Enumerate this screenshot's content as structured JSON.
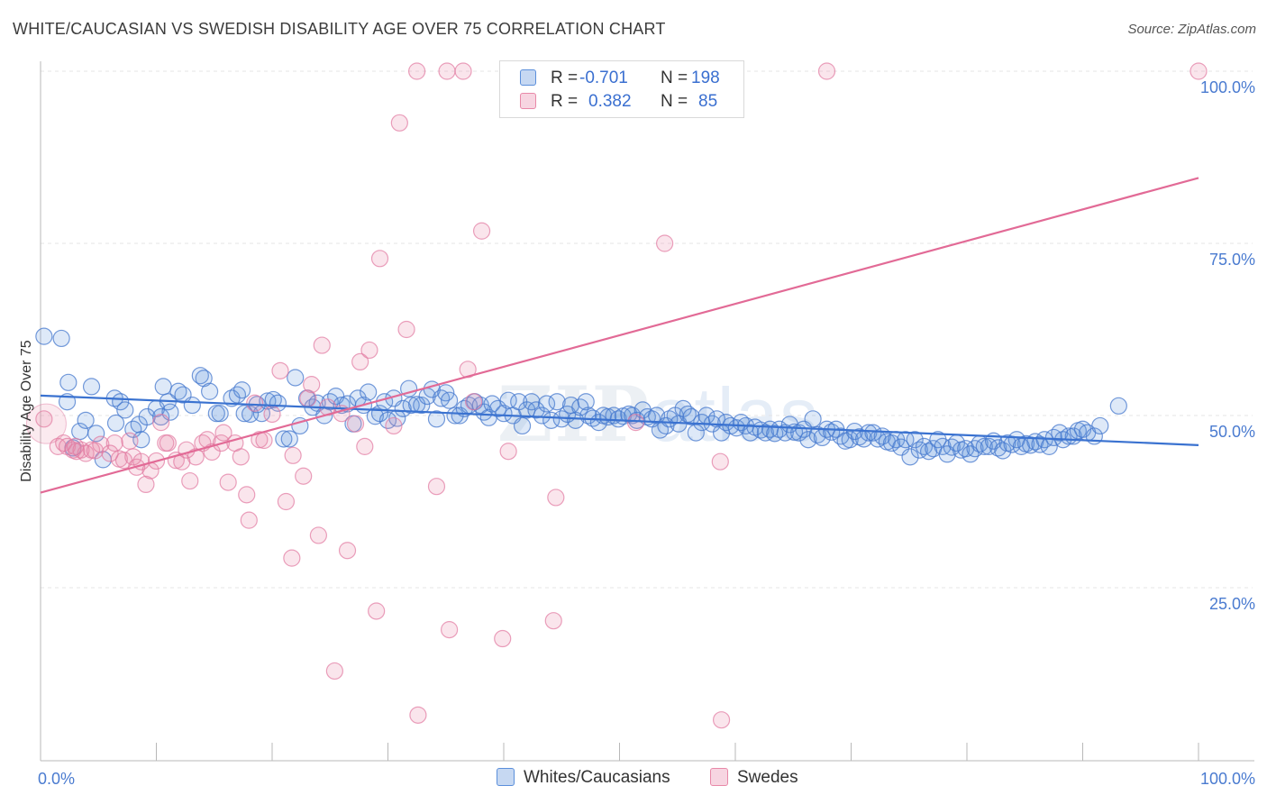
{
  "title": "WHITE/CAUCASIAN VS SWEDISH DISABILITY AGE OVER 75 CORRELATION CHART",
  "source": "Source: ZipAtlas.com",
  "watermark": {
    "bold": "ZIP",
    "light": "atlas"
  },
  "legend": {
    "r_label": "R =",
    "n_label": "N =",
    "rows": [
      {
        "series": "Whites/Caucasians",
        "r": "-0.701",
        "n": "198",
        "color": "#5b8fdb"
      },
      {
        "series": "Swedes",
        "r": "0.382",
        "n": "85",
        "color": "#e888a8"
      }
    ]
  },
  "chart_data": {
    "type": "scatter",
    "title": "WHITE/CAUCASIAN VS SWEDISH DISABILITY AGE OVER 75 CORRELATION CHART",
    "xlabel": "",
    "ylabel": "Disability Age Over 75",
    "xlim": [
      0,
      100
    ],
    "ylim": [
      0,
      102
    ],
    "x_tick_labels": [
      {
        "value": 0,
        "label": "0.0%"
      },
      {
        "value": 100,
        "label": "100.0%"
      }
    ],
    "y_tick_labels": [
      {
        "value": 25,
        "label": "25.0%"
      },
      {
        "value": 50,
        "label": "50.0%"
      },
      {
        "value": 75,
        "label": "75.0%"
      },
      {
        "value": 100,
        "label": "100.0%"
      }
    ],
    "grid": "horizontal dashed",
    "legend_position": "bottom-center",
    "series": [
      {
        "name": "Whites/Caucasians",
        "color": "#5b8fdb",
        "trend": {
          "x": [
            0,
            100
          ],
          "y": [
            52.9,
            45.7
          ]
        },
        "points": [
          [
            0.3,
            61.5
          ],
          [
            1.8,
            61.2
          ],
          [
            2.3,
            52.0
          ],
          [
            2.4,
            54.8
          ],
          [
            2.8,
            45.3
          ],
          [
            3.4,
            47.7
          ],
          [
            3.9,
            49.3
          ],
          [
            4.4,
            54.2
          ],
          [
            4.8,
            47.4
          ],
          [
            5.4,
            43.6
          ],
          [
            6.4,
            52.5
          ],
          [
            6.5,
            48.9
          ],
          [
            6.9,
            52.0
          ],
          [
            7.3,
            50.8
          ],
          [
            8.0,
            48.0
          ],
          [
            8.5,
            48.7
          ],
          [
            8.7,
            46.5
          ],
          [
            9.2,
            49.8
          ],
          [
            10.0,
            51.0
          ],
          [
            10.4,
            49.8
          ],
          [
            10.6,
            54.2
          ],
          [
            11.0,
            52.0
          ],
          [
            11.2,
            50.5
          ],
          [
            11.9,
            53.5
          ],
          [
            12.3,
            53.0
          ],
          [
            13.1,
            51.5
          ],
          [
            13.8,
            55.8
          ],
          [
            14.1,
            55.4
          ],
          [
            14.6,
            53.5
          ],
          [
            15.2,
            50.3
          ],
          [
            15.5,
            50.3
          ],
          [
            16.5,
            52.5
          ],
          [
            17.0,
            53.0
          ],
          [
            17.4,
            53.7
          ],
          [
            17.6,
            50.3
          ],
          [
            18.1,
            50.2
          ],
          [
            18.7,
            51.6
          ],
          [
            19.1,
            50.3
          ],
          [
            19.6,
            52.1
          ],
          [
            20.1,
            52.3
          ],
          [
            20.5,
            51.8
          ],
          [
            21.0,
            46.6
          ],
          [
            21.5,
            46.6
          ],
          [
            22.0,
            55.5
          ],
          [
            22.4,
            48.5
          ],
          [
            23.0,
            52.5
          ],
          [
            23.5,
            51.2
          ],
          [
            23.9,
            51.8
          ],
          [
            24.5,
            50.0
          ],
          [
            25.0,
            52.0
          ],
          [
            25.5,
            52.8
          ],
          [
            26.0,
            51.5
          ],
          [
            26.5,
            51.7
          ],
          [
            27.0,
            48.8
          ],
          [
            27.4,
            52.5
          ],
          [
            27.9,
            51.5
          ],
          [
            28.3,
            53.4
          ],
          [
            28.9,
            49.9
          ],
          [
            29.3,
            50.3
          ],
          [
            29.7,
            52.0
          ],
          [
            30.0,
            49.3
          ],
          [
            30.5,
            52.5
          ],
          [
            30.8,
            49.6
          ],
          [
            31.3,
            51.0
          ],
          [
            31.8,
            53.9
          ],
          [
            32.0,
            51.5
          ],
          [
            32.5,
            51.6
          ],
          [
            32.9,
            51.5
          ],
          [
            33.4,
            52.8
          ],
          [
            33.8,
            53.8
          ],
          [
            34.2,
            49.5
          ],
          [
            34.6,
            52.5
          ],
          [
            35.0,
            53.3
          ],
          [
            35.3,
            52.2
          ],
          [
            35.8,
            50.0
          ],
          [
            36.2,
            50.0
          ],
          [
            36.6,
            51.0
          ],
          [
            37.0,
            51.5
          ],
          [
            37.5,
            52.0
          ],
          [
            38.0,
            51.5
          ],
          [
            38.3,
            50.5
          ],
          [
            38.7,
            49.7
          ],
          [
            39.0,
            51.7
          ],
          [
            39.5,
            51.0
          ],
          [
            40.0,
            50.3
          ],
          [
            40.4,
            52.2
          ],
          [
            40.8,
            50.0
          ],
          [
            41.3,
            52.0
          ],
          [
            41.6,
            48.5
          ],
          [
            42.0,
            50.8
          ],
          [
            42.4,
            52.0
          ],
          [
            42.8,
            50.8
          ],
          [
            43.3,
            50.0
          ],
          [
            43.7,
            51.7
          ],
          [
            44.1,
            49.3
          ],
          [
            44.6,
            52.0
          ],
          [
            45.0,
            49.5
          ],
          [
            45.5,
            50.2
          ],
          [
            45.8,
            51.5
          ],
          [
            46.2,
            49.3
          ],
          [
            46.6,
            51.2
          ],
          [
            47.1,
            52.0
          ],
          [
            47.3,
            50.0
          ],
          [
            47.7,
            49.6
          ],
          [
            48.2,
            49.0
          ],
          [
            48.6,
            50.0
          ],
          [
            49.0,
            49.8
          ],
          [
            49.5,
            50.0
          ],
          [
            49.9,
            49.5
          ],
          [
            50.3,
            49.9
          ],
          [
            50.8,
            50.2
          ],
          [
            51.1,
            50.0
          ],
          [
            51.5,
            49.3
          ],
          [
            52.0,
            50.8
          ],
          [
            52.4,
            49.8
          ],
          [
            52.8,
            49.5
          ],
          [
            53.2,
            50.0
          ],
          [
            53.5,
            47.9
          ],
          [
            54.0,
            48.5
          ],
          [
            54.3,
            49.5
          ],
          [
            54.8,
            50.0
          ],
          [
            55.1,
            48.8
          ],
          [
            55.5,
            51.0
          ],
          [
            55.9,
            50.2
          ],
          [
            56.2,
            49.8
          ],
          [
            56.6,
            47.5
          ],
          [
            57.1,
            49.0
          ],
          [
            57.5,
            50.0
          ],
          [
            58.0,
            48.8
          ],
          [
            58.4,
            49.5
          ],
          [
            58.8,
            47.5
          ],
          [
            59.2,
            49.0
          ],
          [
            59.6,
            48.5
          ],
          [
            60.1,
            48.2
          ],
          [
            60.5,
            49.0
          ],
          [
            60.9,
            48.5
          ],
          [
            61.3,
            47.5
          ],
          [
            61.7,
            48.3
          ],
          [
            62.2,
            47.9
          ],
          [
            62.6,
            47.5
          ],
          [
            63.0,
            48.0
          ],
          [
            63.4,
            47.4
          ],
          [
            63.8,
            48.0
          ],
          [
            64.3,
            47.5
          ],
          [
            64.7,
            48.7
          ],
          [
            65.1,
            47.6
          ],
          [
            65.5,
            47.5
          ],
          [
            65.9,
            48.0
          ],
          [
            66.3,
            46.5
          ],
          [
            66.7,
            49.5
          ],
          [
            67.1,
            47.2
          ],
          [
            67.5,
            46.8
          ],
          [
            67.9,
            48.0
          ],
          [
            68.3,
            47.6
          ],
          [
            68.7,
            48.0
          ],
          [
            69.1,
            47.0
          ],
          [
            69.5,
            46.3
          ],
          [
            69.9,
            46.5
          ],
          [
            70.3,
            47.7
          ],
          [
            70.7,
            46.9
          ],
          [
            71.1,
            46.6
          ],
          [
            71.5,
            47.5
          ],
          [
            71.9,
            47.5
          ],
          [
            72.3,
            46.6
          ],
          [
            72.7,
            47.0
          ],
          [
            73.1,
            46.2
          ],
          [
            73.5,
            46.0
          ],
          [
            73.9,
            46.5
          ],
          [
            74.3,
            45.4
          ],
          [
            74.7,
            46.5
          ],
          [
            75.1,
            44.0
          ],
          [
            75.5,
            46.5
          ],
          [
            75.9,
            45.0
          ],
          [
            76.3,
            45.5
          ],
          [
            76.7,
            44.8
          ],
          [
            77.1,
            45.2
          ],
          [
            77.5,
            46.5
          ],
          [
            77.9,
            45.5
          ],
          [
            78.3,
            44.4
          ],
          [
            78.7,
            45.4
          ],
          [
            79.1,
            46.0
          ],
          [
            79.5,
            45.0
          ],
          [
            79.9,
            45.2
          ],
          [
            80.3,
            44.4
          ],
          [
            80.7,
            45.2
          ],
          [
            81.1,
            45.9
          ],
          [
            81.5,
            45.5
          ],
          [
            81.9,
            45.5
          ],
          [
            82.3,
            46.3
          ],
          [
            82.7,
            45.3
          ],
          [
            83.1,
            44.9
          ],
          [
            83.5,
            46.0
          ],
          [
            83.9,
            45.8
          ],
          [
            84.3,
            46.5
          ],
          [
            84.7,
            45.5
          ],
          [
            85.1,
            45.9
          ],
          [
            85.5,
            45.7
          ],
          [
            85.9,
            46.2
          ],
          [
            86.3,
            45.8
          ],
          [
            86.7,
            46.5
          ],
          [
            87.1,
            45.5
          ],
          [
            87.5,
            46.8
          ],
          [
            88.0,
            47.5
          ],
          [
            88.3,
            46.5
          ],
          [
            88.8,
            47.0
          ],
          [
            89.2,
            47.0
          ],
          [
            89.6,
            47.8
          ],
          [
            90.0,
            48.0
          ],
          [
            90.4,
            47.5
          ],
          [
            91.0,
            47.0
          ],
          [
            91.5,
            48.5
          ],
          [
            93.1,
            51.4
          ]
        ]
      },
      {
        "name": "Swedes",
        "color": "#e888a8",
        "trend": {
          "x": [
            0,
            100
          ],
          "y": [
            38.8,
            84.5
          ]
        },
        "points": [
          [
            0.3,
            49.5
          ],
          [
            1.5,
            45.5
          ],
          [
            2.0,
            46.0
          ],
          [
            2.3,
            45.5
          ],
          [
            2.8,
            45.0
          ],
          [
            3.1,
            44.8
          ],
          [
            3.5,
            45.0
          ],
          [
            3.9,
            44.5
          ],
          [
            4.4,
            45.0
          ],
          [
            4.7,
            44.9
          ],
          [
            5.2,
            45.8
          ],
          [
            6.4,
            46.0
          ],
          [
            6.8,
            43.7
          ],
          [
            7.2,
            43.5
          ],
          [
            7.7,
            46.3
          ],
          [
            8.0,
            44.0
          ],
          [
            8.3,
            42.5
          ],
          [
            8.7,
            43.3
          ],
          [
            9.1,
            40.0
          ],
          [
            9.5,
            42.0
          ],
          [
            10.0,
            43.4
          ],
          [
            10.4,
            49.0
          ],
          [
            10.8,
            46.0
          ],
          [
            11.7,
            43.5
          ],
          [
            12.2,
            43.3
          ],
          [
            12.6,
            45.0
          ],
          [
            12.9,
            40.5
          ],
          [
            13.4,
            44.0
          ],
          [
            14.0,
            46.0
          ],
          [
            14.4,
            46.5
          ],
          [
            14.8,
            44.7
          ],
          [
            15.6,
            46.0
          ],
          [
            15.8,
            47.5
          ],
          [
            16.2,
            40.3
          ],
          [
            16.8,
            46.0
          ],
          [
            17.3,
            44.0
          ],
          [
            17.8,
            38.5
          ],
          [
            18.0,
            34.8
          ],
          [
            18.5,
            51.8
          ],
          [
            18.9,
            46.5
          ],
          [
            19.3,
            46.4
          ],
          [
            20.0,
            50.2
          ],
          [
            20.7,
            56.5
          ],
          [
            21.2,
            37.5
          ],
          [
            21.7,
            29.3
          ],
          [
            21.8,
            44.2
          ],
          [
            22.7,
            41.2
          ],
          [
            23.1,
            52.5
          ],
          [
            23.4,
            54.5
          ],
          [
            24.0,
            32.6
          ],
          [
            24.3,
            60.2
          ],
          [
            24.8,
            51.2
          ],
          [
            25.4,
            12.9
          ],
          [
            26.0,
            50.3
          ],
          [
            26.5,
            30.4
          ],
          [
            27.2,
            48.8
          ],
          [
            27.6,
            57.8
          ],
          [
            28.0,
            45.5
          ],
          [
            28.4,
            59.5
          ],
          [
            29.0,
            21.6
          ],
          [
            29.3,
            72.8
          ],
          [
            30.5,
            48.5
          ],
          [
            31.0,
            92.5
          ],
          [
            31.6,
            62.5
          ],
          [
            32.5,
            100.0
          ],
          [
            32.6,
            6.5
          ],
          [
            34.2,
            39.7
          ],
          [
            35.1,
            100.0
          ],
          [
            35.3,
            18.9
          ],
          [
            36.5,
            100.0
          ],
          [
            36.9,
            56.7
          ],
          [
            37.4,
            52.0
          ],
          [
            38.1,
            76.8
          ],
          [
            39.9,
            17.6
          ],
          [
            40.4,
            44.8
          ],
          [
            44.3,
            20.2
          ],
          [
            44.5,
            38.1
          ],
          [
            51.4,
            49.0
          ],
          [
            53.9,
            75.0
          ],
          [
            58.7,
            43.3
          ],
          [
            58.8,
            5.8
          ],
          [
            67.9,
            100.0
          ],
          [
            100.0,
            100.0
          ],
          [
            6.0,
            44.5
          ],
          [
            11.0,
            46.0
          ],
          [
            3.0,
            45.5
          ]
        ]
      }
    ]
  },
  "y_axis_label": "Disability Age Over 75"
}
